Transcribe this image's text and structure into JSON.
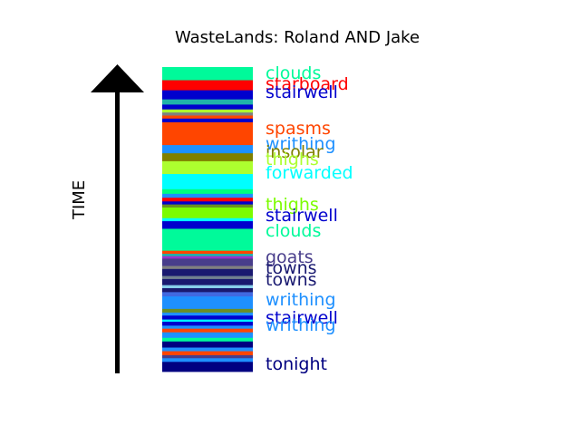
{
  "chart_data": {
    "type": "bar",
    "title": "WasteLands: Roland AND Jake",
    "ylabel": "TIME",
    "ylim": [
      0,
      1
    ],
    "bands": [
      {
        "y0": 0.0,
        "y1": 0.033,
        "color": "#000080"
      },
      {
        "y0": 0.033,
        "y1": 0.045,
        "color": "#1E90FF"
      },
      {
        "y0": 0.045,
        "y1": 0.055,
        "color": "#483D8B"
      },
      {
        "y0": 0.055,
        "y1": 0.068,
        "color": "#FF4500"
      },
      {
        "y0": 0.068,
        "y1": 0.08,
        "color": "#1E90FF"
      },
      {
        "y0": 0.08,
        "y1": 0.1,
        "color": "#000080"
      },
      {
        "y0": 0.1,
        "y1": 0.112,
        "color": "#00FA9A"
      },
      {
        "y0": 0.112,
        "y1": 0.13,
        "color": "#1E90FF"
      },
      {
        "y0": 0.13,
        "y1": 0.142,
        "color": "#FF4500"
      },
      {
        "y0": 0.142,
        "y1": 0.152,
        "color": "#1E90FF"
      },
      {
        "y0": 0.152,
        "y1": 0.165,
        "color": "#0000CD"
      },
      {
        "y0": 0.165,
        "y1": 0.172,
        "color": "#00FFFF"
      },
      {
        "y0": 0.172,
        "y1": 0.185,
        "color": "#0000CD"
      },
      {
        "y0": 0.185,
        "y1": 0.195,
        "color": "#1E90FF"
      },
      {
        "y0": 0.195,
        "y1": 0.207,
        "color": "#6B8E23"
      },
      {
        "y0": 0.207,
        "y1": 0.222,
        "color": "#1E90FF"
      },
      {
        "y0": 0.222,
        "y1": 0.248,
        "color": "#1E90FF"
      },
      {
        "y0": 0.248,
        "y1": 0.262,
        "color": "#4169E1"
      },
      {
        "y0": 0.262,
        "y1": 0.275,
        "color": "#191970"
      },
      {
        "y0": 0.275,
        "y1": 0.285,
        "color": "#87CEEB"
      },
      {
        "y0": 0.285,
        "y1": 0.305,
        "color": "#191970"
      },
      {
        "y0": 0.305,
        "y1": 0.315,
        "color": "#708090"
      },
      {
        "y0": 0.315,
        "y1": 0.338,
        "color": "#191970"
      },
      {
        "y0": 0.338,
        "y1": 0.348,
        "color": "#808080"
      },
      {
        "y0": 0.348,
        "y1": 0.36,
        "color": "#483D8B"
      },
      {
        "y0": 0.36,
        "y1": 0.372,
        "color": "#483D8B"
      },
      {
        "y0": 0.372,
        "y1": 0.38,
        "color": "#9932CC"
      },
      {
        "y0": 0.38,
        "y1": 0.388,
        "color": "#20B2AA"
      },
      {
        "y0": 0.388,
        "y1": 0.398,
        "color": "#FF4500"
      },
      {
        "y0": 0.398,
        "y1": 0.47,
        "color": "#00FA9A"
      },
      {
        "y0": 0.47,
        "y1": 0.495,
        "color": "#0000CD"
      },
      {
        "y0": 0.495,
        "y1": 0.505,
        "color": "#00FFFF"
      },
      {
        "y0": 0.505,
        "y1": 0.54,
        "color": "#7CFC00"
      },
      {
        "y0": 0.54,
        "y1": 0.55,
        "color": "#6B8E23"
      },
      {
        "y0": 0.55,
        "y1": 0.56,
        "color": "#0000CD"
      },
      {
        "y0": 0.56,
        "y1": 0.572,
        "color": "#FF0000"
      },
      {
        "y0": 0.572,
        "y1": 0.585,
        "color": "#1E90FF"
      },
      {
        "y0": 0.585,
        "y1": 0.6,
        "color": "#00FF7F"
      },
      {
        "y0": 0.6,
        "y1": 0.65,
        "color": "#00FFFF"
      },
      {
        "y0": 0.65,
        "y1": 0.672,
        "color": "#ADFF2F"
      },
      {
        "y0": 0.672,
        "y1": 0.692,
        "color": "#ADFF2F"
      },
      {
        "y0": 0.692,
        "y1": 0.718,
        "color": "#808000"
      },
      {
        "y0": 0.718,
        "y1": 0.745,
        "color": "#1E90FF"
      },
      {
        "y0": 0.745,
        "y1": 0.82,
        "color": "#FF4500"
      },
      {
        "y0": 0.82,
        "y1": 0.832,
        "color": "#0000CD"
      },
      {
        "y0": 0.832,
        "y1": 0.842,
        "color": "#FF4500"
      },
      {
        "y0": 0.842,
        "y1": 0.852,
        "color": "#808080"
      },
      {
        "y0": 0.852,
        "y1": 0.862,
        "color": "#ADFF2F"
      },
      {
        "y0": 0.862,
        "y1": 0.878,
        "color": "#0000CD"
      },
      {
        "y0": 0.878,
        "y1": 0.895,
        "color": "#20B2AA"
      },
      {
        "y0": 0.895,
        "y1": 0.925,
        "color": "#0000CD"
      },
      {
        "y0": 0.925,
        "y1": 0.958,
        "color": "#FF0000"
      },
      {
        "y0": 0.958,
        "y1": 1.0,
        "color": "#00FA9A"
      }
    ],
    "annotations": [
      {
        "text": "clouds",
        "y": 0.975,
        "color": "#00FA9A"
      },
      {
        "text": "starboard",
        "y": 0.94,
        "color": "#FF0000"
      },
      {
        "text": "stairwell",
        "y": 0.915,
        "color": "#0000CD"
      },
      {
        "text": "spasms",
        "y": 0.795,
        "color": "#FF4500"
      },
      {
        "text": "writhing",
        "y": 0.745,
        "color": "#1E90FF"
      },
      {
        "text": "insolar",
        "y": 0.718,
        "color": "#808000"
      },
      {
        "text": "thighs",
        "y": 0.693,
        "color": "#ADFF2F"
      },
      {
        "text": "forwarded",
        "y": 0.65,
        "color": "#00FFFF"
      },
      {
        "text": "thighs",
        "y": 0.545,
        "color": "#7CFC00"
      },
      {
        "text": "stairwell",
        "y": 0.508,
        "color": "#0000CD"
      },
      {
        "text": "clouds",
        "y": 0.458,
        "color": "#00FA9A"
      },
      {
        "text": "goats",
        "y": 0.372,
        "color": "#483D8B"
      },
      {
        "text": "towns",
        "y": 0.335,
        "color": "#191970"
      },
      {
        "text": "towns",
        "y": 0.298,
        "color": "#191970"
      },
      {
        "text": "writhing",
        "y": 0.232,
        "color": "#1E90FF"
      },
      {
        "text": "stairwell",
        "y": 0.172,
        "color": "#0000CD"
      },
      {
        "text": "writhing",
        "y": 0.148,
        "color": "#1E90FF"
      },
      {
        "text": "tonight",
        "y": 0.022,
        "color": "#000080"
      }
    ]
  }
}
